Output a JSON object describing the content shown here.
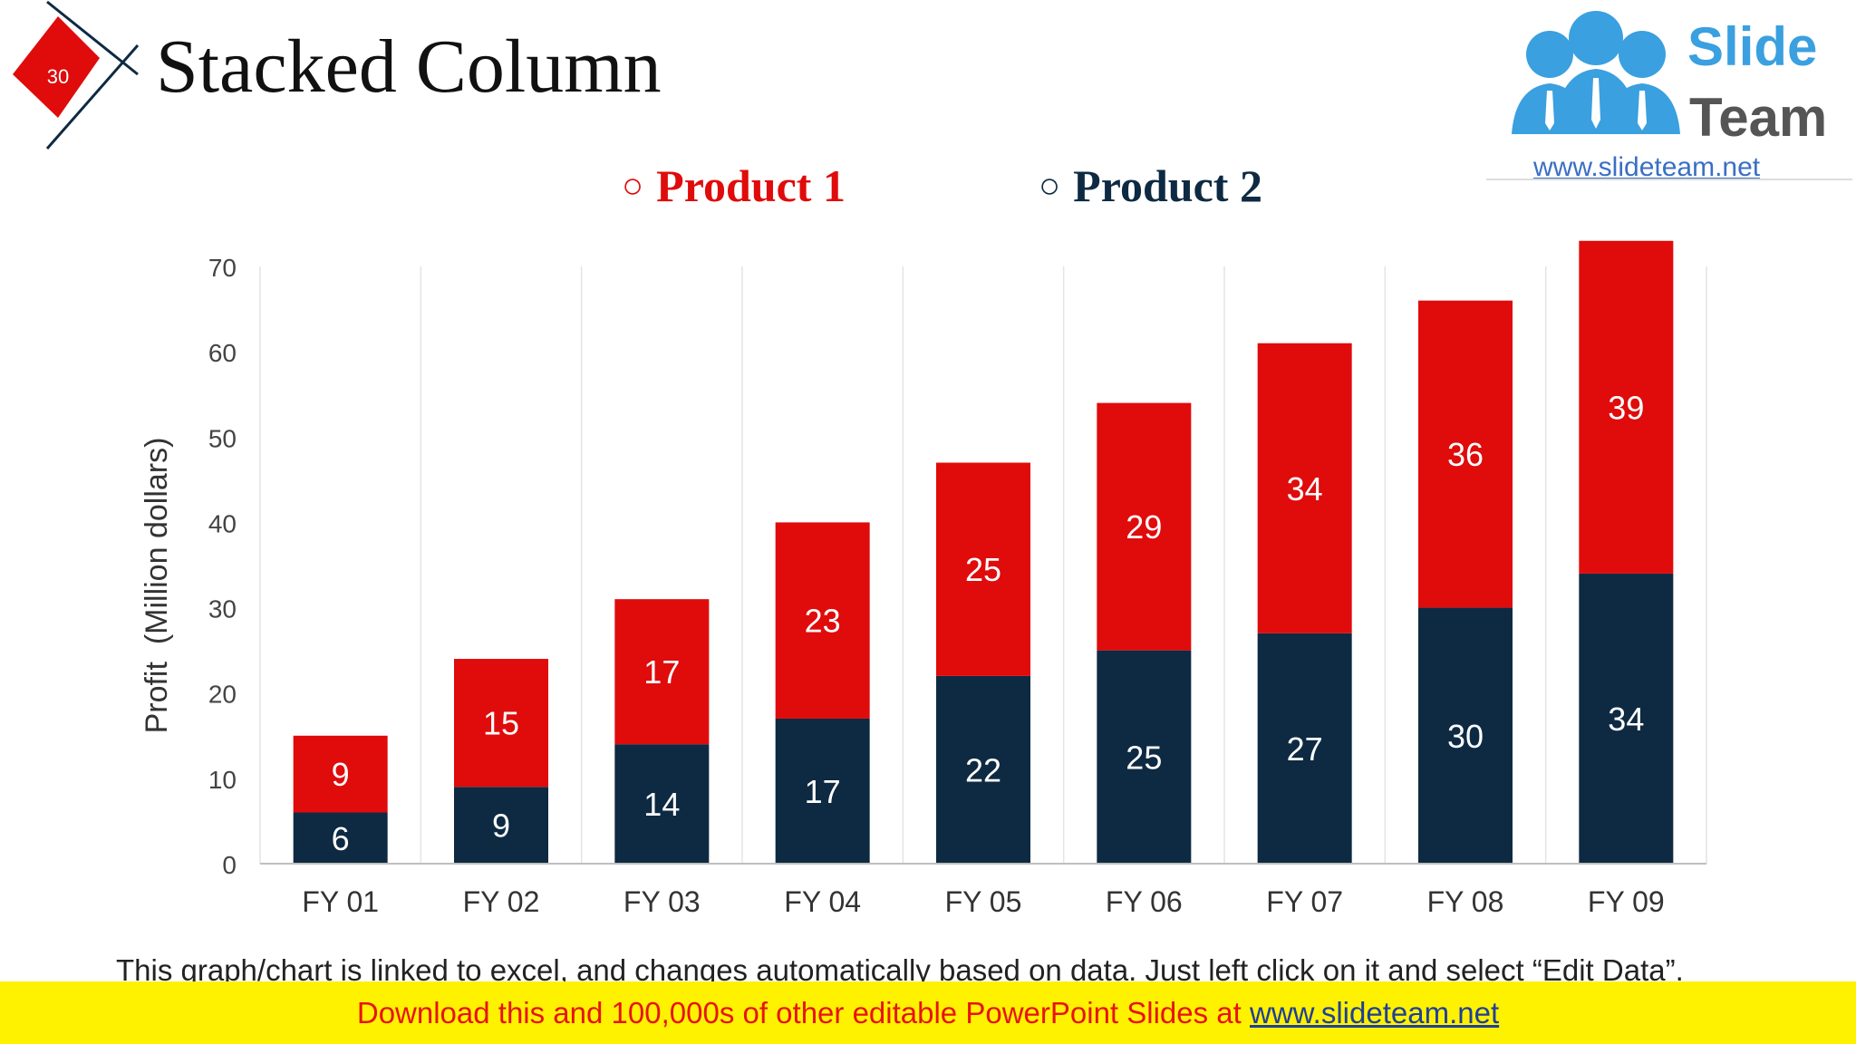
{
  "slide": {
    "number": "30",
    "title": "Stacked Column",
    "footnote": "This graph/chart is linked to excel, and changes automatically based on data. Just left click on it and select “Edit Data”."
  },
  "logo": {
    "line1": "Slide",
    "line2": "Team",
    "url": "www.slideteam.net"
  },
  "legend": {
    "marker": "○",
    "product1": "Product 1",
    "product2": "Product 2"
  },
  "banner": {
    "text": "Download this and 100,000s of other editable PowerPoint Slides at ",
    "link": "www.slideteam.net"
  },
  "colors": {
    "product1": "#e00b0b",
    "product2": "#0e2a42",
    "badge": "#e00b0b",
    "banner_bg": "#fef200",
    "banner_text": "#e8130f",
    "logo_blue": "#3aa0e0"
  },
  "chart_data": {
    "type": "bar",
    "stacked": true,
    "title": "",
    "xlabel": "",
    "ylabel": "Profit  (Million dollars)",
    "ylim": [
      0,
      70
    ],
    "yticks": [
      0,
      10,
      20,
      30,
      40,
      50,
      60,
      70
    ],
    "categories": [
      "FY 01",
      "FY 02",
      "FY 03",
      "FY 04",
      "FY 05",
      "FY 06",
      "FY 07",
      "FY 08",
      "FY 09"
    ],
    "series": [
      {
        "name": "Product 2",
        "values": [
          6,
          9,
          14,
          17,
          22,
          25,
          27,
          30,
          34
        ]
      },
      {
        "name": "Product 1",
        "values": [
          9,
          15,
          17,
          23,
          25,
          29,
          34,
          36,
          39
        ]
      }
    ],
    "legend": "top",
    "grid": "vertical"
  }
}
